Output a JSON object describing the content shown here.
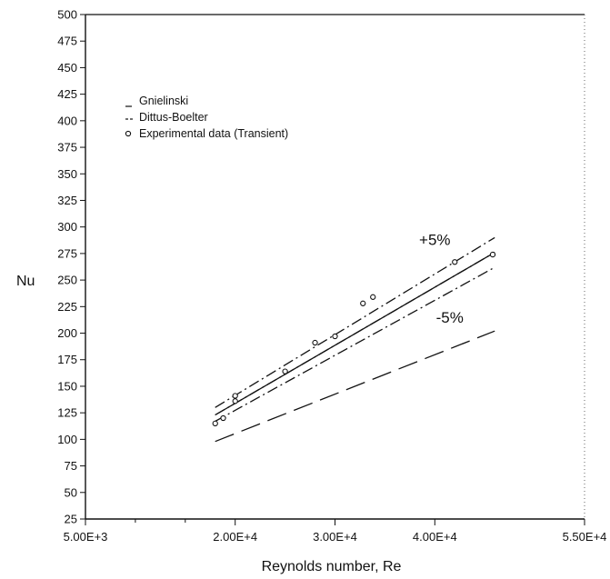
{
  "chart_data": {
    "type": "line",
    "xlabel": "Reynolds number, Re",
    "ylabel": "Nu",
    "xlim": [
      5000,
      55000
    ],
    "ylim": [
      25,
      500
    ],
    "x_ticks": [
      {
        "value": 5000,
        "label": "5.00E+3"
      },
      {
        "value": 20000,
        "label": "2.00E+4"
      },
      {
        "value": 30000,
        "label": "3.00E+4"
      },
      {
        "value": 40000,
        "label": "4.00E+4"
      },
      {
        "value": 55000,
        "label": "5.50E+4"
      }
    ],
    "y_ticks": [
      25,
      50,
      75,
      100,
      125,
      150,
      175,
      200,
      225,
      250,
      275,
      300,
      325,
      350,
      375,
      400,
      425,
      450,
      475,
      500
    ],
    "grid": false,
    "legend_position": "top-left",
    "series": [
      {
        "name": "Gnielinski",
        "style": "long-dash",
        "x": [
          18000,
          46000
        ],
        "y": [
          98,
          202
        ]
      },
      {
        "name": "Dittus-Boelter",
        "style": "dash-dot",
        "x": [
          18000,
          46000
        ],
        "y": [
          123,
          276
        ]
      },
      {
        "style": "dash-dot",
        "x": [
          18000,
          46000
        ],
        "y": [
          130,
          290
        ]
      },
      {
        "style": "dash-dot",
        "x": [
          18000,
          46000
        ],
        "y": [
          117,
          262
        ]
      },
      {
        "style": "solid",
        "x": [
          18000,
          46000
        ],
        "y": [
          123,
          276
        ]
      },
      {
        "name": "Experimental data (Transient)",
        "style": "open-circle-markers",
        "x": [
          18000,
          18800,
          20000,
          20000,
          25000,
          28000,
          30000,
          32800,
          33800,
          42000,
          45800
        ],
        "y": [
          115,
          120,
          136,
          141,
          164,
          191,
          197,
          228,
          234,
          267,
          274
        ]
      }
    ],
    "annotations": [
      {
        "text": "+5%",
        "x": 40000,
        "y": 283
      },
      {
        "text": "-5%",
        "x": 41500,
        "y": 210
      }
    ]
  }
}
